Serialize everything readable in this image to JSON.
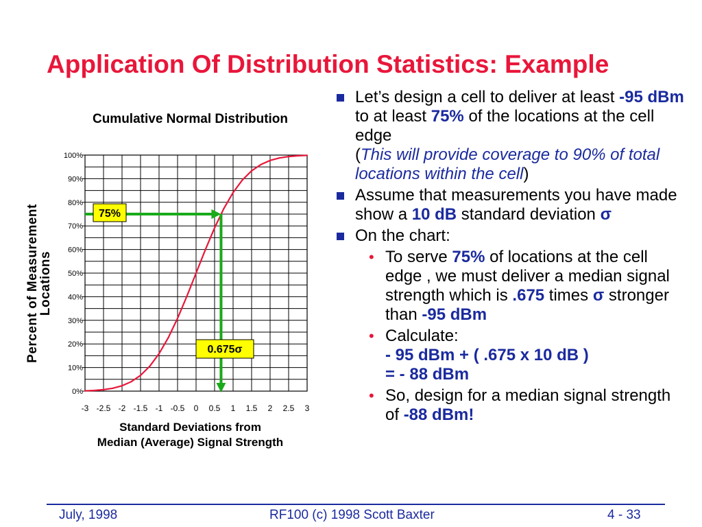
{
  "slide": {
    "title": "Application Of Distribution Statistics: Example"
  },
  "chart_data": {
    "type": "line",
    "title": "Cumulative Normal Distribution",
    "xlabel_lines": [
      "Standard Deviations from",
      "Median (Average) Signal Strength"
    ],
    "ylabel_lines": [
      "Percent of Measurement",
      "Locations"
    ],
    "x_ticks": [
      "-3",
      "-2.5",
      "-2",
      "-1.5",
      "-1",
      "-0.5",
      "0",
      "0.5",
      "1",
      "1.5",
      "2",
      "2.5",
      "3"
    ],
    "y_ticks": [
      "0%",
      "10%",
      "20%",
      "30%",
      "40%",
      "50%",
      "60%",
      "70%",
      "80%",
      "90%",
      "100%"
    ],
    "xlim": [
      -3,
      3
    ],
    "ylim": [
      0,
      100
    ],
    "grid": true,
    "series": [
      {
        "x": [
          -3,
          -2.75,
          -2.5,
          -2.25,
          -2,
          -1.75,
          -1.5,
          -1.25,
          -1,
          -0.75,
          -0.5,
          -0.25,
          0,
          0.25,
          0.5,
          0.75,
          1,
          1.25,
          1.5,
          1.75,
          2,
          2.25,
          2.5,
          2.75,
          3
        ],
        "y": [
          0.13,
          0.3,
          0.62,
          1.22,
          2.28,
          4.01,
          6.68,
          10.56,
          15.87,
          22.66,
          30.85,
          40.13,
          50,
          59.87,
          69.15,
          77.34,
          84.13,
          89.44,
          93.32,
          95.99,
          97.72,
          98.78,
          99.38,
          99.7,
          99.87
        ],
        "color": "#e8173a"
      }
    ],
    "annotations": {
      "percent_label": "75%",
      "percent_value": 75,
      "sigma_label": "0.675σ",
      "sigma_value": 0.675,
      "line_color": "#1aaa1a",
      "box_color": "#ffff00"
    }
  },
  "bullets": {
    "b1": {
      "t1": "Let’s design a cell to deliver at least ",
      "t2": "-95 dBm",
      "t3": " to at least ",
      "t4": "75%",
      "t5": " of the locations at the cell edge",
      "t6": "(",
      "t7": "This will provide coverage to 90% of total locations within the cell",
      "t8": ")"
    },
    "b2": {
      "t1": "Assume that measurements you have made show a ",
      "t2": "10 dB",
      "t3": " standard deviation ",
      "t4": "σ"
    },
    "b3": {
      "t1": "On the chart:"
    },
    "s1": {
      "t1": "To serve ",
      "t2": "75%",
      "t3": " of locations at the cell edge , we must deliver a median signal strength which is ",
      "t4": ".675",
      "t5": " times ",
      "t6": "σ",
      "t7": " stronger than ",
      "t8": "-95 dBm"
    },
    "s2": {
      "t1": "Calculate:",
      "t2": "- 95 dBm + ( .675 x 10 dB )",
      "t3": "= - 88 dBm"
    },
    "s3": {
      "t1": "So, design for a median signal strength of ",
      "t2": "-88 dBm!"
    },
    "bullet_glyph": "•"
  },
  "footer": {
    "left": "July, 1998",
    "center": "RF100 (c) 1998 Scott Baxter",
    "right": "4 - 33"
  },
  "colors": {
    "title": "#e8173a",
    "accent": "#1a2a9e",
    "curve": "#e8173a",
    "guide": "#1aaa1a"
  }
}
